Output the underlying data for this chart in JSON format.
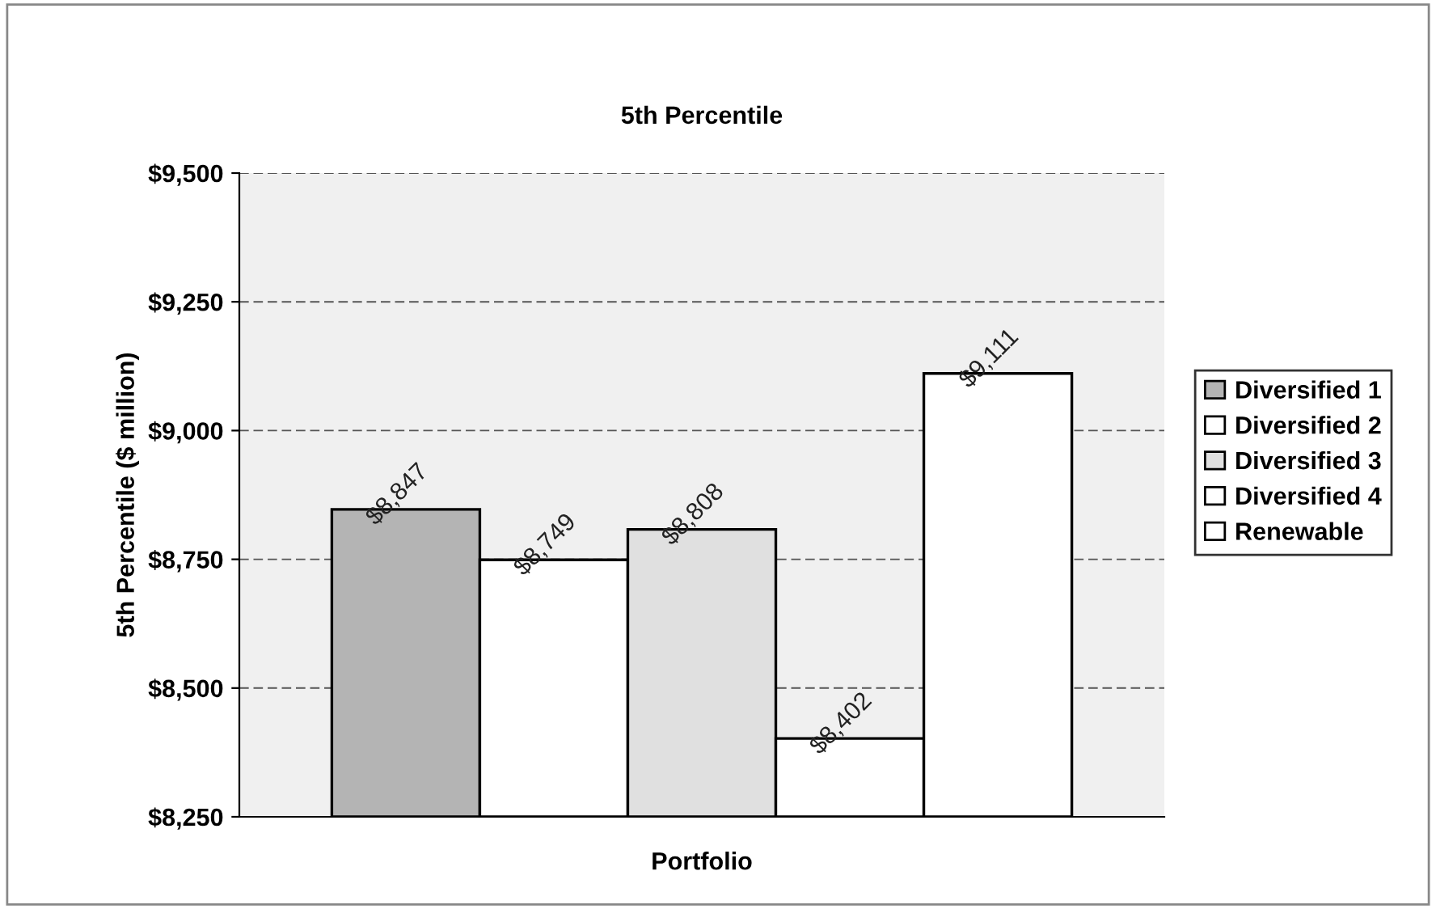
{
  "chart_data": {
    "type": "bar",
    "title": "5th Percentile",
    "xlabel": "Portfolio",
    "ylabel": "5th Percentile ($ million)",
    "categories": [
      null
    ],
    "series": [
      {
        "name": "Diversified 1",
        "color": "#b4b4b4",
        "values": [
          8847
        ],
        "value_labels": [
          "$8,847"
        ]
      },
      {
        "name": "Diversified 2",
        "color": "#ffffff",
        "values": [
          8749
        ],
        "value_labels": [
          "$8,749"
        ]
      },
      {
        "name": "Diversified 3",
        "color": "#e0e0e0",
        "values": [
          8808
        ],
        "value_labels": [
          "$8,808"
        ]
      },
      {
        "name": "Diversified 4",
        "color": "#ffffff",
        "values": [
          8402
        ],
        "value_labels": [
          "$8,402"
        ]
      },
      {
        "name": "Renewable",
        "color": "#ffffff",
        "values": [
          9111
        ],
        "value_labels": [
          "$9,111"
        ]
      }
    ],
    "ylim": [
      8250,
      9500
    ],
    "yticks": [
      {
        "value": 8250,
        "label": "$8,250"
      },
      {
        "value": 8500,
        "label": "$8,500"
      },
      {
        "value": 8750,
        "label": "$8,750"
      },
      {
        "value": 9000,
        "label": "$9,000"
      },
      {
        "value": 9250,
        "label": "$9,250"
      },
      {
        "value": 9500,
        "label": "$9,500"
      }
    ],
    "grid": "y",
    "legend": "right"
  }
}
